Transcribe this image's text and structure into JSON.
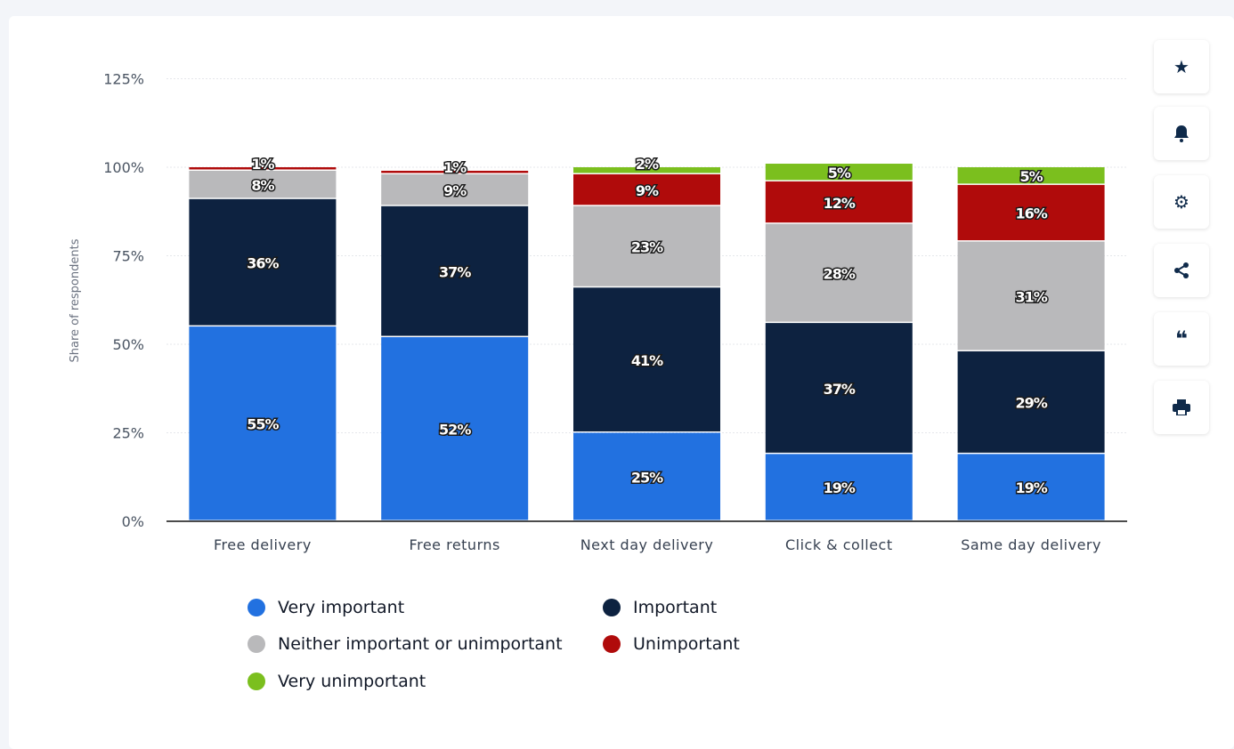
{
  "chart_data": {
    "type": "bar",
    "stacked": true,
    "ylabel": "Share of respondents",
    "xlabel": "",
    "ylim": [
      0,
      125
    ],
    "yticks": [
      "0%",
      "25%",
      "50%",
      "75%",
      "100%",
      "125%"
    ],
    "ytick_values": [
      0,
      25,
      50,
      75,
      100,
      125
    ],
    "categories": [
      "Free delivery",
      "Free returns",
      "Next day delivery",
      "Click & collect",
      "Same day delivery"
    ],
    "series": [
      {
        "name": "Very important",
        "color": "#2271e0",
        "values": [
          55,
          52,
          25,
          19,
          19
        ]
      },
      {
        "name": "Important",
        "color": "#0d2240",
        "values": [
          36,
          37,
          41,
          37,
          29
        ]
      },
      {
        "name": "Neither important or unimportant",
        "color": "#b9b9bb",
        "values": [
          8,
          9,
          23,
          28,
          31
        ]
      },
      {
        "name": "Unimportant",
        "color": "#b00b0b",
        "values": [
          1,
          1,
          9,
          12,
          16
        ]
      },
      {
        "name": "Very unimportant",
        "color": "#7bbf1e",
        "values": [
          0,
          0,
          2,
          5,
          5
        ]
      }
    ],
    "grid": true,
    "legend_position": "bottom"
  },
  "sidebar": {
    "icons": [
      "star-icon",
      "bell-icon",
      "gear-icon",
      "share-icon",
      "quote-icon",
      "print-icon"
    ]
  }
}
